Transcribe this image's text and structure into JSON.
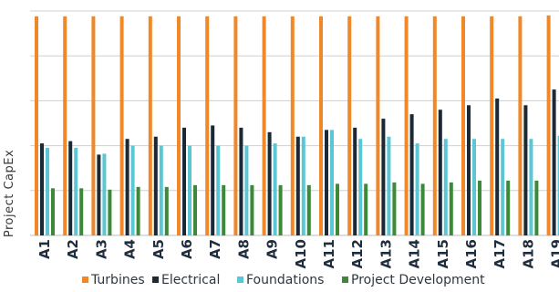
{
  "chart_data": {
    "type": "bar",
    "title": "",
    "xlabel": "",
    "ylabel": "Project CapEx",
    "ylim": [
      0,
      5
    ],
    "grid": true,
    "legend_position": "bottom",
    "categories": [
      "A1",
      "A2",
      "A3",
      "A4",
      "A5",
      "A6",
      "A7",
      "A8",
      "A9",
      "A10",
      "A11",
      "A12",
      "A13",
      "A14",
      "A15",
      "A16",
      "A17",
      "A18",
      "A19"
    ],
    "series": [
      {
        "name": "Turbines",
        "color": "#f0882a",
        "values": [
          4.88,
          4.88,
          4.88,
          4.88,
          4.88,
          4.88,
          4.88,
          4.88,
          4.88,
          4.88,
          4.88,
          4.88,
          4.88,
          4.88,
          4.88,
          4.88,
          4.88,
          4.88,
          4.9
        ]
      },
      {
        "name": "Electrical",
        "color": "#1b2836",
        "values": [
          2.05,
          2.1,
          1.8,
          2.15,
          2.2,
          2.4,
          2.45,
          2.4,
          2.3,
          2.2,
          2.35,
          2.4,
          2.6,
          2.7,
          2.8,
          2.9,
          3.05,
          2.9,
          3.25
        ]
      },
      {
        "name": "Foundations",
        "color": "#5bc7d5",
        "values": [
          1.95,
          1.95,
          1.82,
          2.0,
          2.0,
          2.0,
          2.0,
          2.0,
          2.05,
          2.2,
          2.35,
          2.15,
          2.2,
          2.05,
          2.15,
          2.15,
          2.15,
          2.15,
          2.22
        ]
      },
      {
        "name": "Project Development",
        "color": "#3c8a38",
        "values": [
          1.05,
          1.05,
          1.02,
          1.08,
          1.08,
          1.12,
          1.12,
          1.12,
          1.12,
          1.12,
          1.15,
          1.15,
          1.18,
          1.15,
          1.18,
          1.22,
          1.22,
          1.22,
          1.22
        ]
      }
    ]
  }
}
